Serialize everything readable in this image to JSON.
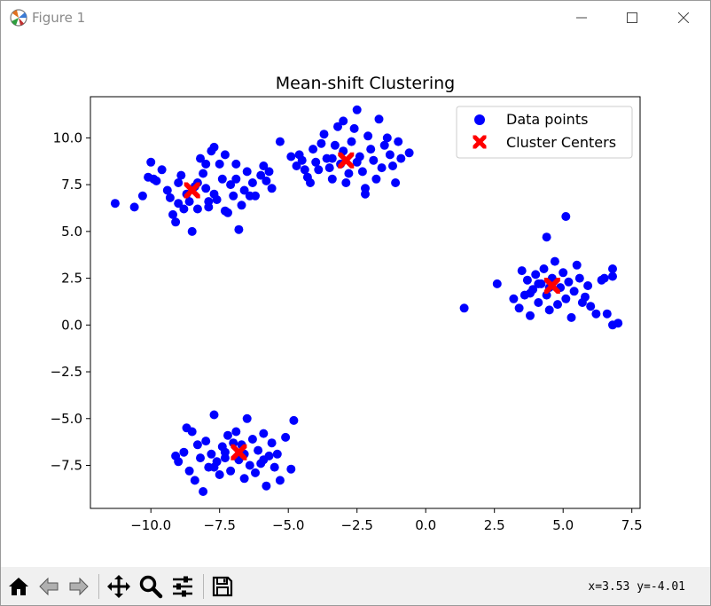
{
  "window": {
    "title": "Figure 1",
    "icons": {
      "app": "matplotlib-icon",
      "minimize": "minimize-icon",
      "maximize": "maximize-icon",
      "close": "close-icon"
    }
  },
  "toolbar": {
    "buttons": [
      {
        "name": "home",
        "icon": "home-icon"
      },
      {
        "name": "back",
        "icon": "back-arrow-icon"
      },
      {
        "name": "forward",
        "icon": "forward-arrow-icon"
      },
      {
        "name": "pan",
        "icon": "pan-move-icon"
      },
      {
        "name": "zoom",
        "icon": "zoom-icon"
      },
      {
        "name": "configure",
        "icon": "configure-subplots-icon"
      },
      {
        "name": "save",
        "icon": "save-icon"
      }
    ],
    "coords_text": "x=3.53 y=-4.01"
  },
  "chart_data": {
    "type": "scatter",
    "title": "Mean-shift Clustering",
    "xlabel": "",
    "ylabel": "",
    "xlim": [
      -12.2,
      7.8
    ],
    "ylim": [
      -9.8,
      12.2
    ],
    "xticks": [
      -10.0,
      -7.5,
      -5.0,
      -2.5,
      0.0,
      2.5,
      5.0,
      7.5
    ],
    "xtick_labels": [
      "−10.0",
      "−7.5",
      "−5.0",
      "−2.5",
      "0.0",
      "2.5",
      "5.0",
      "7.5"
    ],
    "yticks": [
      -7.5,
      -5.0,
      -2.5,
      0.0,
      2.5,
      5.0,
      7.5,
      10.0
    ],
    "ytick_labels": [
      "−7.5",
      "−5.0",
      "−2.5",
      "0.0",
      "2.5",
      "5.0",
      "7.5",
      "10.0"
    ],
    "grid": false,
    "legend": {
      "placement": "upper-right",
      "entries": [
        "Data points",
        "Cluster Centers"
      ]
    },
    "series": [
      {
        "name": "Data points",
        "marker": "circle",
        "color": "#0000ff",
        "points": [
          [
            -11.3,
            6.5
          ],
          [
            -10.6,
            6.3
          ],
          [
            -10.3,
            6.9
          ],
          [
            -10.1,
            7.9
          ],
          [
            -10.0,
            8.7
          ],
          [
            -9.9,
            7.8
          ],
          [
            -9.8,
            7.7
          ],
          [
            -9.6,
            8.3
          ],
          [
            -9.4,
            7.2
          ],
          [
            -9.3,
            6.8
          ],
          [
            -9.2,
            5.9
          ],
          [
            -9.1,
            5.5
          ],
          [
            -9.0,
            6.5
          ],
          [
            -9.0,
            7.6
          ],
          [
            -8.9,
            8.0
          ],
          [
            -8.8,
            6.2
          ],
          [
            -8.7,
            7.0
          ],
          [
            -8.6,
            6.6
          ],
          [
            -8.5,
            5.0
          ],
          [
            -8.4,
            7.4
          ],
          [
            -8.3,
            6.2
          ],
          [
            -8.2,
            8.9
          ],
          [
            -8.1,
            8.1
          ],
          [
            -8.0,
            7.3
          ],
          [
            -7.9,
            6.3
          ],
          [
            -7.8,
            9.3
          ],
          [
            -7.7,
            7.0
          ],
          [
            -7.6,
            6.7
          ],
          [
            -7.5,
            8.6
          ],
          [
            -7.4,
            7.8
          ],
          [
            -7.3,
            9.1
          ],
          [
            -7.2,
            6.0
          ],
          [
            -7.1,
            7.5
          ],
          [
            -7.0,
            6.9
          ],
          [
            -6.9,
            8.6
          ],
          [
            -6.8,
            5.1
          ],
          [
            -6.7,
            6.4
          ],
          [
            -6.6,
            7.2
          ],
          [
            -6.5,
            8.2
          ],
          [
            -6.4,
            6.9
          ],
          [
            -6.3,
            7.6
          ],
          [
            -6.0,
            8.0
          ],
          [
            -5.8,
            7.7
          ],
          [
            -5.7,
            8.2
          ],
          [
            -5.6,
            7.3
          ],
          [
            -8.0,
            8.6
          ],
          [
            -7.7,
            9.5
          ],
          [
            -8.3,
            7.6
          ],
          [
            -7.9,
            6.6
          ],
          [
            -7.3,
            6.1
          ],
          [
            -6.9,
            7.8
          ],
          [
            -6.2,
            6.9
          ],
          [
            -5.9,
            8.5
          ],
          [
            -5.3,
            9.8
          ],
          [
            -4.9,
            9.0
          ],
          [
            -4.7,
            8.5
          ],
          [
            -4.6,
            9.1
          ],
          [
            -4.5,
            8.8
          ],
          [
            -4.4,
            8.3
          ],
          [
            -4.3,
            7.9
          ],
          [
            -4.2,
            7.6
          ],
          [
            -4.1,
            9.4
          ],
          [
            -4.0,
            8.7
          ],
          [
            -3.9,
            8.3
          ],
          [
            -3.8,
            9.7
          ],
          [
            -3.7,
            10.2
          ],
          [
            -3.6,
            8.9
          ],
          [
            -3.5,
            8.4
          ],
          [
            -3.4,
            7.8
          ],
          [
            -3.3,
            9.6
          ],
          [
            -3.2,
            10.6
          ],
          [
            -3.1,
            8.6
          ],
          [
            -3.0,
            9.3
          ],
          [
            -2.9,
            7.6
          ],
          [
            -2.8,
            8.1
          ],
          [
            -2.7,
            9.8
          ],
          [
            -2.6,
            10.5
          ],
          [
            -2.5,
            8.7
          ],
          [
            -2.4,
            9.0
          ],
          [
            -2.3,
            8.2
          ],
          [
            -2.2,
            7.3
          ],
          [
            -2.1,
            10.1
          ],
          [
            -2.0,
            9.4
          ],
          [
            -1.9,
            8.8
          ],
          [
            -1.8,
            7.8
          ],
          [
            -1.7,
            11.0
          ],
          [
            -1.6,
            8.4
          ],
          [
            -1.5,
            9.6
          ],
          [
            -1.4,
            10.0
          ],
          [
            -1.3,
            9.1
          ],
          [
            -1.2,
            8.5
          ],
          [
            -1.1,
            7.6
          ],
          [
            -1.0,
            9.8
          ],
          [
            -0.9,
            8.9
          ],
          [
            -2.5,
            11.5
          ],
          [
            -3.0,
            10.9
          ],
          [
            -2.2,
            7.0
          ],
          [
            -3.4,
            8.9
          ],
          [
            -0.6,
            9.2
          ],
          [
            1.4,
            0.9
          ],
          [
            2.6,
            2.2
          ],
          [
            3.2,
            1.4
          ],
          [
            3.4,
            0.9
          ],
          [
            3.5,
            2.9
          ],
          [
            3.6,
            1.6
          ],
          [
            3.7,
            2.4
          ],
          [
            3.8,
            0.5
          ],
          [
            3.9,
            1.9
          ],
          [
            4.0,
            2.7
          ],
          [
            4.1,
            1.2
          ],
          [
            4.2,
            2.2
          ],
          [
            4.3,
            3.0
          ],
          [
            4.4,
            1.6
          ],
          [
            4.5,
            0.8
          ],
          [
            4.6,
            2.5
          ],
          [
            4.7,
            3.4
          ],
          [
            4.8,
            1.1
          ],
          [
            4.9,
            2.0
          ],
          [
            5.0,
            2.8
          ],
          [
            5.1,
            1.4
          ],
          [
            5.2,
            2.3
          ],
          [
            5.3,
            0.4
          ],
          [
            5.4,
            1.8
          ],
          [
            5.5,
            3.2
          ],
          [
            5.6,
            2.5
          ],
          [
            5.7,
            1.2
          ],
          [
            5.8,
            1.5
          ],
          [
            5.9,
            2.1
          ],
          [
            6.0,
            1.0
          ],
          [
            6.2,
            0.6
          ],
          [
            6.4,
            2.4
          ],
          [
            6.5,
            2.5
          ],
          [
            6.6,
            0.6
          ],
          [
            6.8,
            3.0
          ],
          [
            6.8,
            2.6
          ],
          [
            7.0,
            0.1
          ],
          [
            6.8,
            0.0
          ],
          [
            5.1,
            5.8
          ],
          [
            4.4,
            4.7
          ],
          [
            4.1,
            2.2
          ],
          [
            3.8,
            1.7
          ],
          [
            4.5,
            2.0
          ],
          [
            -9.1,
            -7.0
          ],
          [
            -9.0,
            -7.3
          ],
          [
            -8.8,
            -6.8
          ],
          [
            -8.7,
            -5.5
          ],
          [
            -8.6,
            -7.8
          ],
          [
            -8.5,
            -5.7
          ],
          [
            -8.4,
            -8.3
          ],
          [
            -8.3,
            -6.4
          ],
          [
            -8.2,
            -7.1
          ],
          [
            -8.1,
            -8.9
          ],
          [
            -8.0,
            -6.2
          ],
          [
            -7.9,
            -7.6
          ],
          [
            -7.8,
            -6.9
          ],
          [
            -7.7,
            -4.8
          ],
          [
            -7.6,
            -7.3
          ],
          [
            -7.5,
            -8.0
          ],
          [
            -7.4,
            -6.5
          ],
          [
            -7.3,
            -7.1
          ],
          [
            -7.2,
            -5.9
          ],
          [
            -7.1,
            -7.8
          ],
          [
            -7.0,
            -6.3
          ],
          [
            -6.9,
            -5.7
          ],
          [
            -6.8,
            -7.2
          ],
          [
            -6.7,
            -6.4
          ],
          [
            -6.6,
            -8.2
          ],
          [
            -6.5,
            -5.0
          ],
          [
            -6.4,
            -7.5
          ],
          [
            -6.3,
            -6.1
          ],
          [
            -6.2,
            -7.9
          ],
          [
            -6.1,
            -6.7
          ],
          [
            -6.0,
            -7.4
          ],
          [
            -5.9,
            -5.8
          ],
          [
            -5.8,
            -8.6
          ],
          [
            -5.7,
            -7.0
          ],
          [
            -5.6,
            -6.3
          ],
          [
            -5.5,
            -7.6
          ],
          [
            -5.4,
            -6.9
          ],
          [
            -5.3,
            -8.3
          ],
          [
            -5.1,
            -6.0
          ],
          [
            -4.9,
            -7.7
          ],
          [
            -4.8,
            -5.1
          ],
          [
            -7.7,
            -7.6
          ],
          [
            -7.3,
            -6.8
          ],
          [
            -6.6,
            -6.9
          ],
          [
            -5.9,
            -7.2
          ]
        ]
      },
      {
        "name": "Cluster Centers",
        "marker": "X",
        "color": "#ff0000",
        "points": [
          [
            -8.5,
            7.2
          ],
          [
            -2.9,
            8.8
          ],
          [
            4.6,
            2.1
          ],
          [
            -6.8,
            -6.8
          ]
        ]
      }
    ]
  }
}
